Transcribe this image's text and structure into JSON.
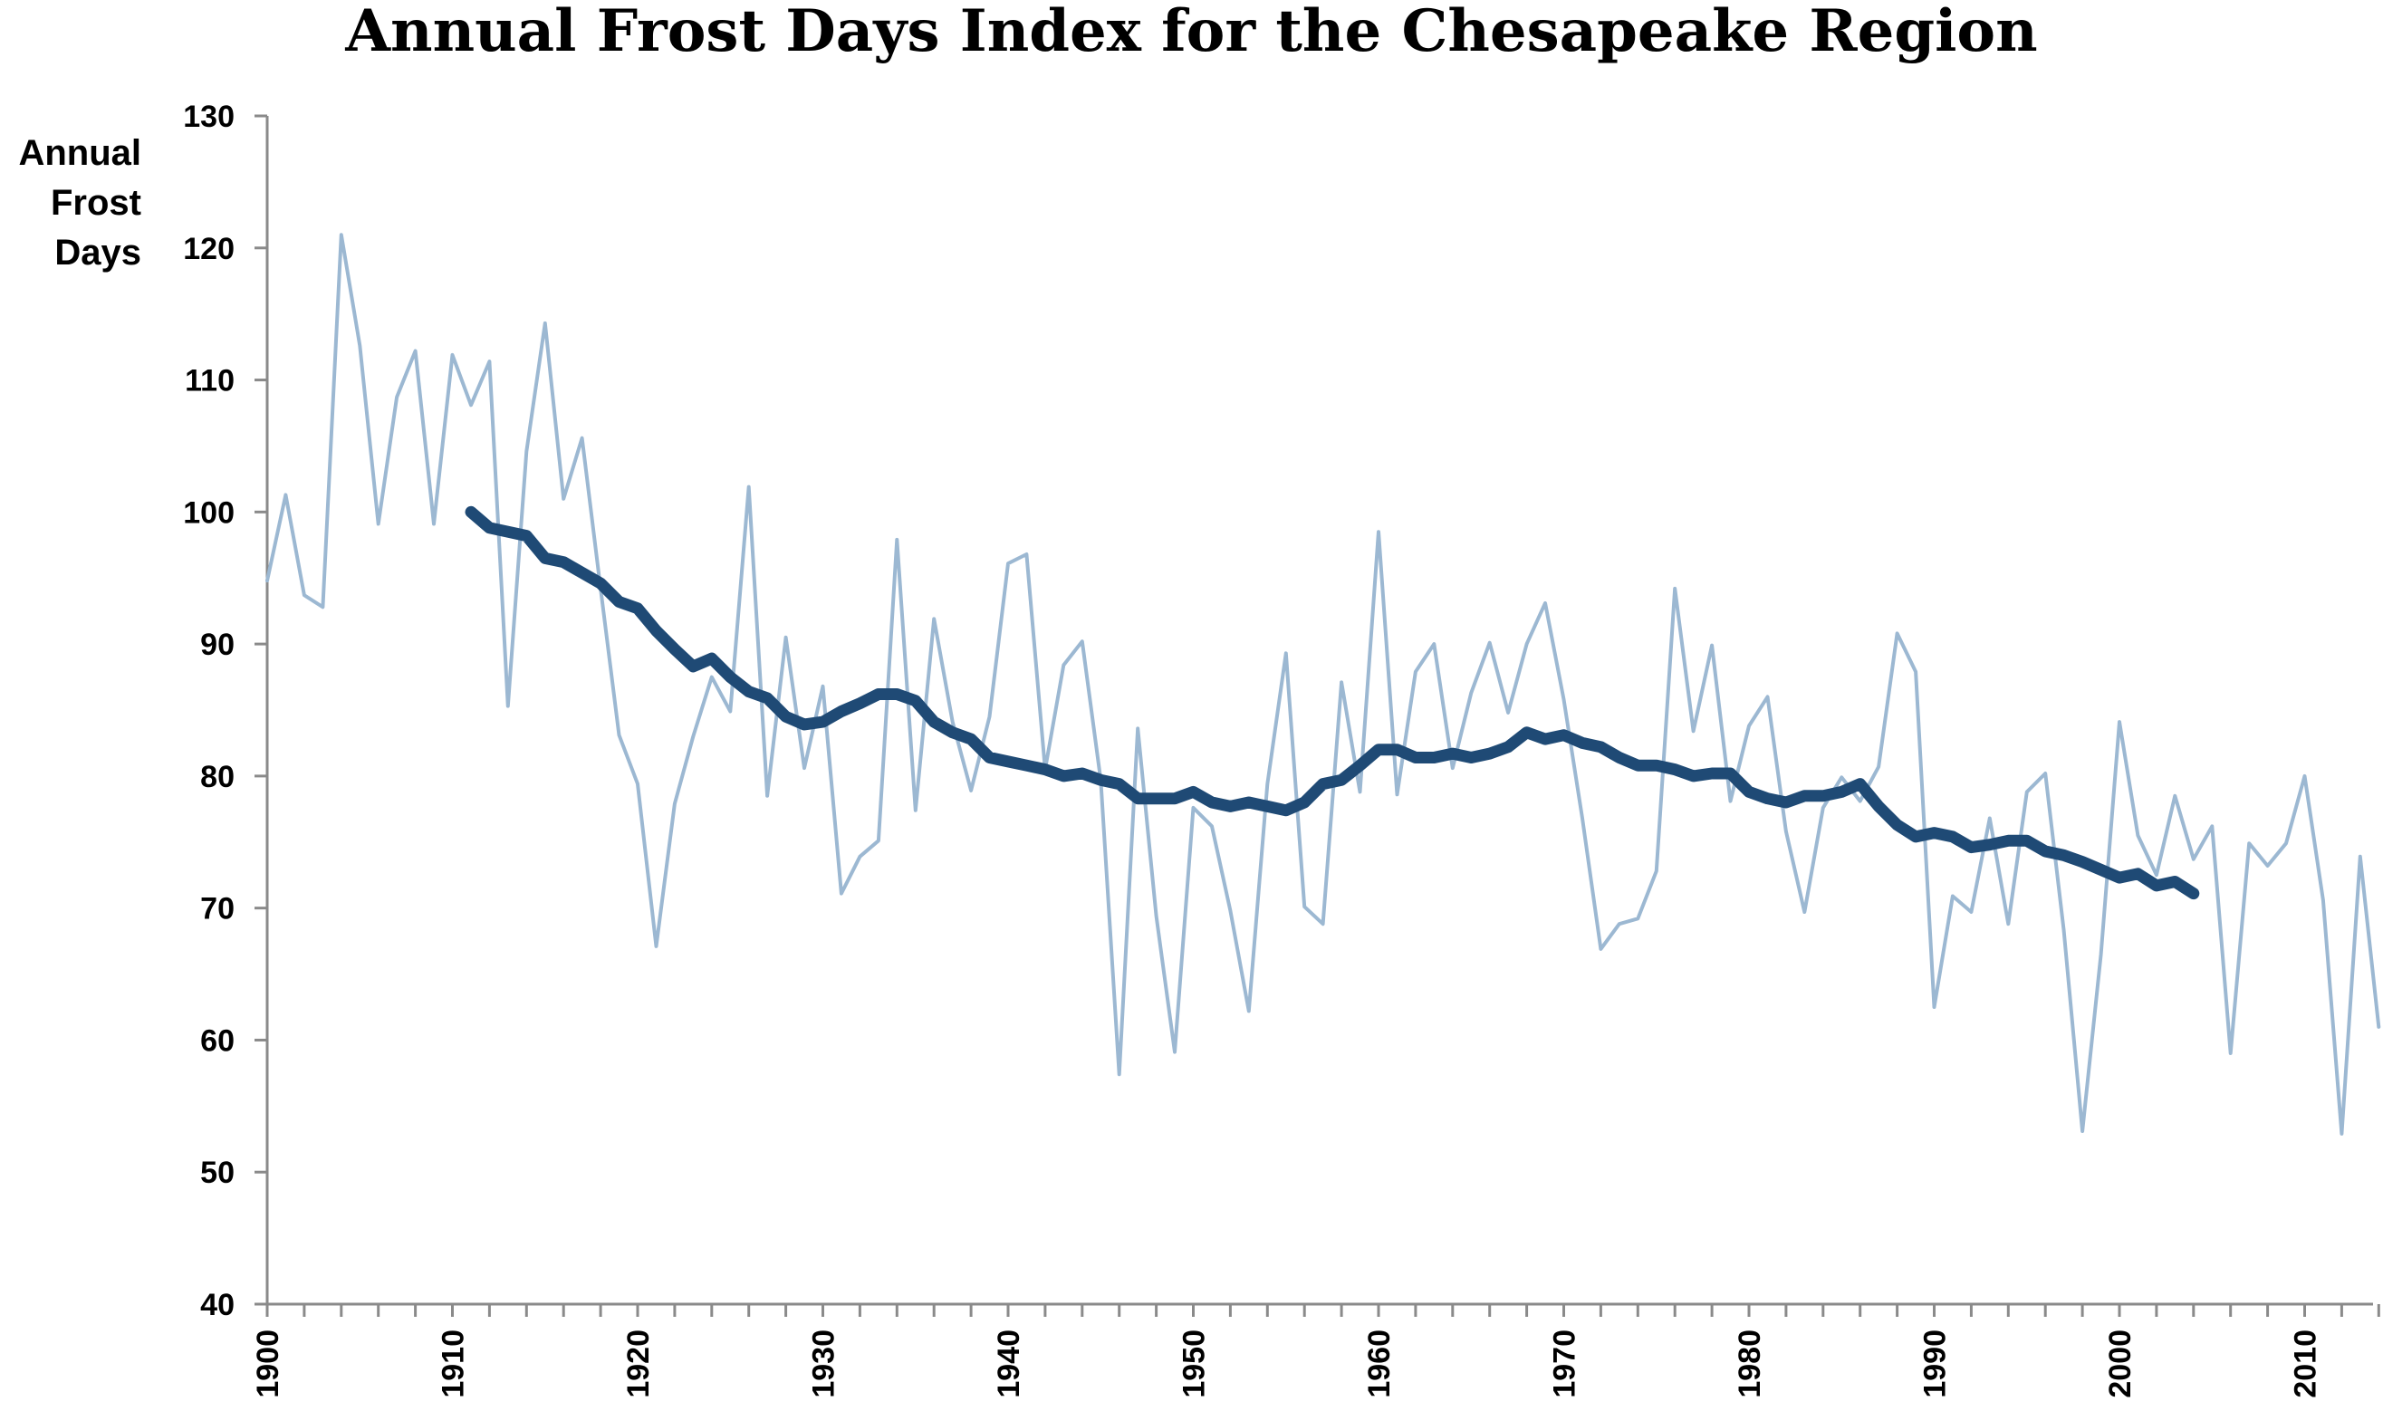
{
  "chart_data": {
    "type": "line",
    "title": "Annual Frost Days Index for the Chesapeake Region",
    "ylabel": [
      "Annual",
      "Frost",
      "Days"
    ],
    "xlabel": "",
    "xlim": [
      1900,
      2014
    ],
    "ylim": [
      40,
      130
    ],
    "yticks": [
      40,
      50,
      60,
      70,
      80,
      90,
      100,
      110,
      120,
      130
    ],
    "xticks": [
      1900,
      1910,
      1920,
      1930,
      1940,
      1950,
      1960,
      1970,
      1980,
      1990,
      2000,
      2010
    ],
    "grid": false,
    "legend": "none",
    "series": [
      {
        "style": "thin",
        "color": "#9cb8d2",
        "x": [
          1900,
          1901,
          1902,
          1903,
          1904,
          1905,
          1906,
          1907,
          1908,
          1909,
          1910,
          1911,
          1912,
          1913,
          1914,
          1915,
          1916,
          1917,
          1918,
          1919,
          1920,
          1921,
          1922,
          1923,
          1924,
          1925,
          1926,
          1927,
          1928,
          1929,
          1930,
          1931,
          1932,
          1933,
          1934,
          1935,
          1936,
          1937,
          1938,
          1939,
          1940,
          1941,
          1942,
          1943,
          1944,
          1945,
          1946,
          1947,
          1948,
          1949,
          1950,
          1951,
          1952,
          1953,
          1954,
          1955,
          1956,
          1957,
          1958,
          1959,
          1960,
          1961,
          1962,
          1963,
          1964,
          1965,
          1966,
          1967,
          1968,
          1969,
          1970,
          1971,
          1972,
          1973,
          1974,
          1975,
          1976,
          1977,
          1978,
          1979,
          1980,
          1981,
          1982,
          1983,
          1984,
          1985,
          1986,
          1987,
          1988,
          1989,
          1990,
          1991,
          1992,
          1993,
          1994,
          1995,
          1996,
          1997,
          1998,
          1999,
          2000,
          2001,
          2002,
          2003,
          2004,
          2005,
          2006,
          2007,
          2008,
          2009,
          2010,
          2011,
          2012,
          2013,
          2014
        ],
        "values": [
          94.8,
          101.3,
          93.7,
          92.8,
          121.0,
          112.6,
          99.1,
          108.7,
          112.2,
          99.1,
          111.9,
          108.1,
          111.4,
          85.3,
          104.6,
          114.3,
          101.0,
          105.6,
          94.2,
          83.1,
          79.4,
          67.1,
          77.9,
          83.0,
          87.5,
          84.9,
          101.9,
          78.5,
          90.5,
          80.6,
          86.8,
          71.1,
          73.9,
          75.1,
          97.9,
          77.4,
          91.9,
          84.1,
          78.9,
          84.5,
          96.1,
          96.8,
          80.5,
          88.4,
          90.2,
          79.7,
          57.4,
          83.6,
          69.4,
          59.1,
          77.6,
          76.2,
          69.8,
          62.2,
          79.4,
          89.3,
          70.1,
          68.8,
          87.1,
          78.8,
          98.5,
          78.6,
          87.9,
          90.0,
          80.6,
          86.3,
          90.1,
          84.8,
          90.0,
          93.1,
          85.8,
          76.8,
          66.9,
          68.8,
          69.2,
          72.8,
          94.2,
          83.4,
          89.9,
          78.1,
          83.8,
          86.0,
          75.8,
          69.7,
          77.6,
          79.9,
          78.1,
          80.7,
          90.8,
          87.9,
          62.5,
          70.9,
          69.7,
          76.8,
          68.8,
          78.8,
          80.2,
          68.3,
          53.1,
          66.5,
          84.1,
          75.5,
          72.5,
          78.5,
          73.7,
          76.2,
          59.0,
          74.9,
          73.2,
          74.9,
          80.0,
          70.6,
          52.9,
          73.9,
          61.0
        ]
      },
      {
        "style": "thick",
        "color": "#1f4a75",
        "x": [
          1911,
          1912,
          1913,
          1914,
          1915,
          1916,
          1917,
          1918,
          1919,
          1920,
          1921,
          1922,
          1923,
          1924,
          1925,
          1926,
          1927,
          1928,
          1929,
          1930,
          1931,
          1932,
          1933,
          1934,
          1935,
          1936,
          1937,
          1938,
          1939,
          1940,
          1941,
          1942,
          1943,
          1944,
          1945,
          1946,
          1947,
          1948,
          1949,
          1950,
          1951,
          1952,
          1953,
          1954,
          1955,
          1956,
          1957,
          1958,
          1959,
          1960,
          1961,
          1962,
          1963,
          1964,
          1965,
          1966,
          1967,
          1968,
          1969,
          1970,
          1971,
          1972,
          1973,
          1974,
          1975,
          1976,
          1977,
          1978,
          1979,
          1980,
          1981,
          1982,
          1983,
          1984,
          1985,
          1986,
          1987,
          1988,
          1989,
          1990,
          1991,
          1992,
          1993,
          1994,
          1995,
          1996,
          1997,
          1998,
          1999,
          2000,
          2001,
          2002,
          2003,
          2004
        ],
        "values": [
          100.0,
          98.8,
          98.5,
          98.2,
          96.5,
          96.2,
          95.4,
          94.6,
          93.2,
          92.7,
          91.0,
          89.6,
          88.3,
          88.9,
          87.5,
          86.4,
          85.9,
          84.5,
          83.9,
          84.1,
          84.9,
          85.5,
          86.2,
          86.2,
          85.7,
          84.1,
          83.3,
          82.8,
          81.4,
          81.1,
          80.8,
          80.5,
          80.0,
          80.2,
          79.7,
          79.4,
          78.3,
          78.3,
          78.3,
          78.8,
          78.0,
          77.7,
          78.0,
          77.7,
          77.4,
          78.0,
          79.4,
          79.7,
          80.8,
          82.0,
          82.0,
          81.4,
          81.4,
          81.7,
          81.4,
          81.7,
          82.2,
          83.3,
          82.8,
          83.1,
          82.5,
          82.2,
          81.4,
          80.8,
          80.8,
          80.5,
          80.0,
          80.2,
          80.2,
          78.8,
          78.3,
          78.0,
          78.5,
          78.5,
          78.8,
          79.4,
          77.7,
          76.3,
          75.4,
          75.7,
          75.4,
          74.6,
          74.8,
          75.1,
          75.1,
          74.3,
          74.0,
          73.5,
          72.9,
          72.3,
          72.6,
          71.7,
          72.0,
          71.1
        ]
      }
    ]
  }
}
